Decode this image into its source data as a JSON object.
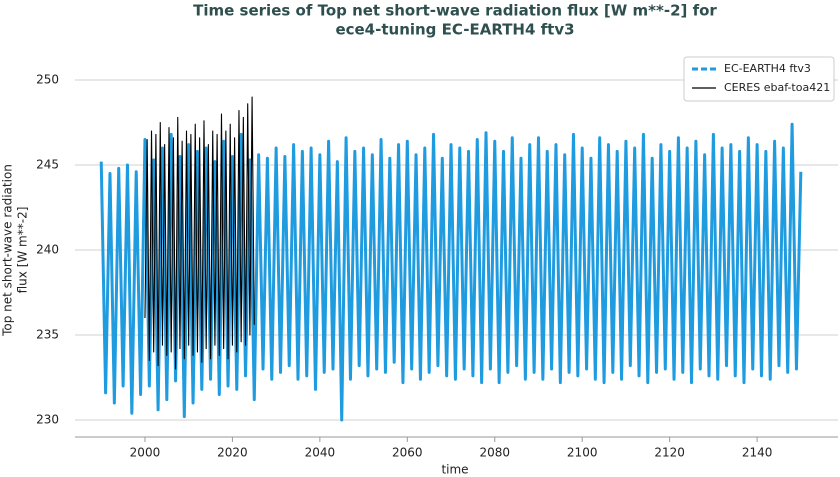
{
  "chart_data": {
    "type": "line",
    "title": [
      "Time series of Top net short-wave radiation flux [W m**-2] for",
      "ece4-tuning EC-EARTH4 ftv3"
    ],
    "xlabel": "time",
    "ylabel": [
      "Top net short-wave radiation",
      "flux [W m**-2]"
    ],
    "xlim": [
      1984,
      2158.5
    ],
    "ylim": [
      229,
      251
    ],
    "xticks": [
      2000,
      2020,
      2040,
      2060,
      2080,
      2100,
      2120,
      2140
    ],
    "yticks": [
      230,
      235,
      240,
      245,
      250
    ],
    "grid": true,
    "legend": "upper right",
    "series": [
      {
        "name": "EC-EARTH4 ftv3",
        "color": "#1f9be0",
        "dash": true,
        "x": [
          1990,
          1991,
          1992,
          1993,
          1994,
          1995,
          1996,
          1997,
          1998,
          1999,
          2000,
          2001,
          2002,
          2003,
          2004,
          2005,
          2006,
          2007,
          2008,
          2009,
          2010,
          2011,
          2012,
          2013,
          2014,
          2015,
          2016,
          2017,
          2018,
          2019,
          2020,
          2021,
          2022,
          2023,
          2024,
          2025,
          2026,
          2027,
          2028,
          2029,
          2030,
          2031,
          2032,
          2033,
          2034,
          2035,
          2036,
          2037,
          2038,
          2039,
          2040,
          2041,
          2042,
          2043,
          2044,
          2045,
          2046,
          2047,
          2048,
          2049,
          2050,
          2051,
          2052,
          2053,
          2054,
          2055,
          2056,
          2057,
          2058,
          2059,
          2060,
          2061,
          2062,
          2063,
          2064,
          2065,
          2066,
          2067,
          2068,
          2069,
          2070,
          2071,
          2072,
          2073,
          2074,
          2075,
          2076,
          2077,
          2078,
          2079,
          2080,
          2081,
          2082,
          2083,
          2084,
          2085,
          2086,
          2087,
          2088,
          2089,
          2090,
          2091,
          2092,
          2093,
          2094,
          2095,
          2096,
          2097,
          2098,
          2099,
          2100,
          2101,
          2102,
          2103,
          2104,
          2105,
          2106,
          2107,
          2108,
          2109,
          2110,
          2111,
          2112,
          2113,
          2114,
          2115,
          2116,
          2117,
          2118,
          2119,
          2120,
          2121,
          2122,
          2123,
          2124,
          2125,
          2126,
          2127,
          2128,
          2129,
          2130,
          2131,
          2132,
          2133,
          2134,
          2135,
          2136,
          2137,
          2138,
          2139,
          2140,
          2141,
          2142,
          2143,
          2144,
          2145,
          2146,
          2147,
          2148,
          2149,
          2150
        ],
        "values": [
          245.2,
          231.6,
          244.5,
          231,
          244.8,
          232,
          245,
          230.4,
          244.6,
          231.5,
          246.5,
          232,
          245.3,
          230.6,
          246,
          231.2,
          246.8,
          232.3,
          245.5,
          230.2,
          246.2,
          231,
          245.8,
          231.8,
          246,
          232.4,
          245.2,
          231.5,
          246.4,
          232,
          245.5,
          231.8,
          246.8,
          232.6,
          245.3,
          231.2,
          245.6,
          233,
          245.4,
          232.4,
          246,
          232.8,
          245.5,
          233.2,
          246.2,
          232.4,
          245.8,
          232.6,
          246,
          231.8,
          245.6,
          232.8,
          246.4,
          233,
          245.2,
          230,
          246.6,
          232.4,
          245.8,
          233.2,
          246,
          232.6,
          245.6,
          233,
          246.5,
          232.8,
          245.4,
          233.4,
          246.2,
          232.2,
          246.4,
          233,
          245.6,
          232.4,
          246,
          232.8,
          246.8,
          233.2,
          245.4,
          232.6,
          246.2,
          232.4,
          246,
          233,
          245.8,
          232.6,
          246.5,
          232.2,
          246.9,
          233,
          246.4,
          232.2,
          245.8,
          232.8,
          246.6,
          233.2,
          245.4,
          232.4,
          246.2,
          232.8,
          246.6,
          232.4,
          245.8,
          233,
          246.2,
          232.2,
          245.6,
          232.8,
          246.8,
          232.6,
          246,
          233,
          245.4,
          232.4,
          246.6,
          232.2,
          246.2,
          232.8,
          245.8,
          232.4,
          246.4,
          233.2,
          246,
          232.6,
          246.8,
          232.2,
          245.4,
          232.8,
          246.2,
          233,
          245.8,
          232.4,
          246.6,
          232.8,
          246,
          232.2,
          246.4,
          233,
          245.6,
          232.6,
          246.8,
          232.4,
          246,
          233.2,
          246.2,
          232.6,
          245.8,
          232.2,
          246.6,
          233,
          246.2,
          232.6,
          245.8,
          232.4,
          246.4,
          233.2,
          246,
          232.8,
          247.4,
          233,
          244.6
        ]
      },
      {
        "name": "CERES ebaf-toa421",
        "color": "#000000",
        "dash": false,
        "x": [
          2000,
          2000.5,
          2001,
          2001.5,
          2002,
          2002.5,
          2003,
          2003.5,
          2004,
          2004.5,
          2005,
          2005.5,
          2006,
          2006.5,
          2007,
          2007.5,
          2008,
          2008.5,
          2009,
          2009.5,
          2010,
          2010.5,
          2011,
          2011.5,
          2012,
          2012.5,
          2013,
          2013.5,
          2014,
          2014.5,
          2015,
          2015.5,
          2016,
          2016.5,
          2017,
          2017.5,
          2018,
          2018.5,
          2019,
          2019.5,
          2020,
          2020.5,
          2021,
          2021.5,
          2022,
          2022.5,
          2023,
          2023.5,
          2024,
          2024.5,
          2025
        ],
        "values": [
          236,
          246.5,
          233.5,
          247,
          234,
          246.8,
          233.2,
          247.5,
          234.4,
          246.2,
          233.8,
          247.2,
          234,
          246.6,
          233,
          247.8,
          234.2,
          246.4,
          233.6,
          247,
          234.4,
          246.8,
          233.8,
          247.4,
          234,
          246.6,
          233.4,
          247.6,
          234.2,
          246.2,
          233.6,
          247,
          234.4,
          246.8,
          233.8,
          248,
          234.2,
          247,
          233.6,
          247.4,
          234.4,
          246.6,
          234,
          248.2,
          234.6,
          247.8,
          234.4,
          248.6,
          235,
          249,
          235.6
        ]
      }
    ]
  }
}
